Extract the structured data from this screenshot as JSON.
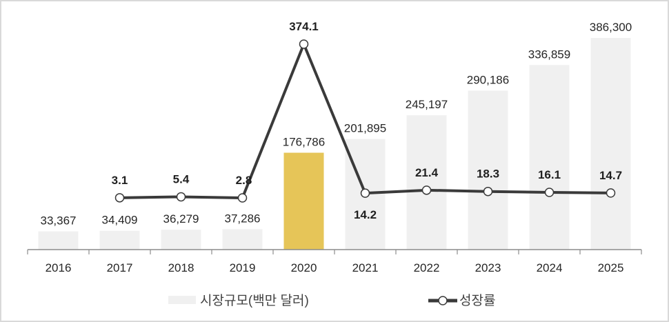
{
  "chart_data": {
    "type": "bar+line",
    "title": "",
    "categories": [
      "2016",
      "2017",
      "2018",
      "2019",
      "2020",
      "2021",
      "2022",
      "2023",
      "2024",
      "2025"
    ],
    "series": [
      {
        "name": "시장규모(백만 달러)",
        "type": "bar",
        "values": [
          33367,
          34409,
          36279,
          37286,
          176786,
          201895,
          245197,
          290186,
          336859,
          386300
        ],
        "labels": [
          "33,367",
          "34,409",
          "36,279",
          "37,286",
          "176,786",
          "201,895",
          "245,197",
          "290,186",
          "336,859",
          "386,300"
        ],
        "color": "#f0f0f0",
        "highlight_index": 4,
        "highlight_color": "#e6c558"
      },
      {
        "name": "성장률",
        "type": "line",
        "values": [
          null,
          3.1,
          5.4,
          2.8,
          374.1,
          14.2,
          21.4,
          18.3,
          16.1,
          14.7
        ],
        "labels": [
          "",
          "3.1",
          "5.4",
          "2.8",
          "374.1",
          "14.2",
          "21.4",
          "18.3",
          "16.1",
          "14.7"
        ],
        "color": "#3a3a3a",
        "marker": "open-circle"
      }
    ],
    "xlabel": "",
    "ylabel": "",
    "grid": false,
    "legend_position": "bottom"
  },
  "legend": {
    "bar_label": "시장규모(백만 달러)",
    "line_label": "성장률"
  }
}
